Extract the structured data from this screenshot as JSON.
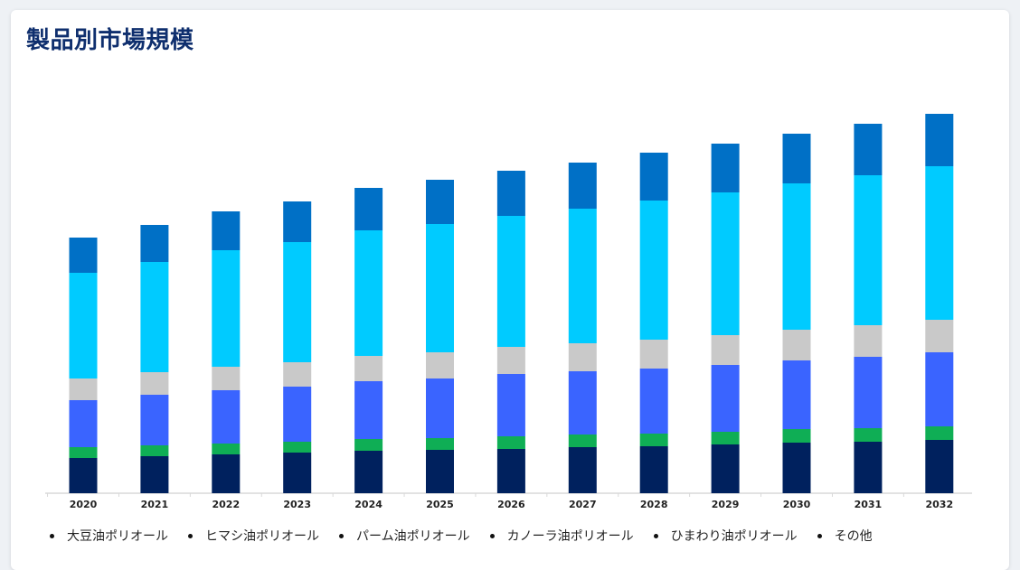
{
  "page": {
    "title": "製品別市場規模"
  },
  "chart_data": {
    "type": "bar",
    "stacked": true,
    "categories": [
      "2020",
      "2021",
      "2022",
      "2023",
      "2024",
      "2025",
      "2026",
      "2027",
      "2028",
      "2029",
      "2030",
      "2031",
      "2032"
    ],
    "series": [
      {
        "name": "大豆油ポリオール",
        "color": "#00215e",
        "values": [
          39,
          41,
          43,
          45,
          47,
          48,
          49,
          51,
          52,
          54,
          56,
          57,
          59
        ]
      },
      {
        "name": "ヒマシ油ポリオール",
        "color": "#0fae55",
        "values": [
          12,
          12,
          12,
          12,
          13,
          13,
          14,
          14,
          14,
          14,
          15,
          15,
          15
        ]
      },
      {
        "name": "パーム油ポリオール",
        "color": "#3a64ff",
        "values": [
          52,
          56,
          59,
          61,
          64,
          66,
          69,
          70,
          72,
          74,
          76,
          79,
          82
        ]
      },
      {
        "name": "カノーラ油ポリオール",
        "color": "#c9c9c9",
        "values": [
          24,
          25,
          26,
          27,
          28,
          29,
          30,
          31,
          32,
          33,
          34,
          35,
          36
        ]
      },
      {
        "name": "ひまわり油ポリオール",
        "color": "#00cbff",
        "values": [
          117,
          122,
          129,
          133,
          139,
          142,
          145,
          149,
          154,
          158,
          162,
          166,
          170
        ]
      },
      {
        "name": "その他",
        "color": "#0070c6",
        "values": [
          39,
          41,
          43,
          45,
          47,
          49,
          50,
          51,
          53,
          54,
          55,
          57,
          58
        ]
      }
    ],
    "grid": false,
    "legend_position": "bottom"
  }
}
